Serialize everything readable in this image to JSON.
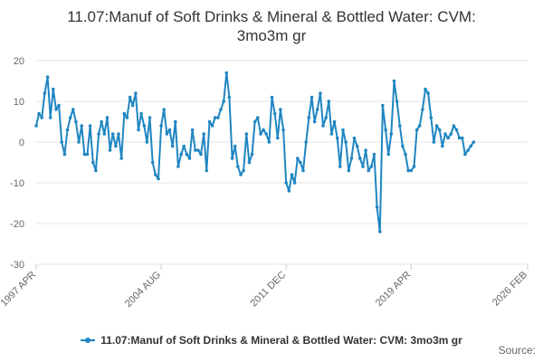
{
  "page": {
    "source_label": "Source:"
  },
  "chart_data": {
    "type": "line",
    "title_lines": [
      "11.07:Manuf of Soft Drinks & Mineral & Bottled Water: CVM:",
      "3mo3m gr"
    ],
    "xlabel": "",
    "ylabel": "",
    "ylim": [
      -30,
      20
    ],
    "yticks": [
      -30,
      -20,
      -10,
      0,
      10,
      20
    ],
    "grid": true,
    "legend_position": "bottom-center",
    "x_range": [
      "1997-04",
      "2026-02"
    ],
    "x_tick_labels": [
      {
        "label": "1997 APR",
        "date": "1997-04"
      },
      {
        "label": "2004 AUG",
        "date": "2004-08"
      },
      {
        "label": "2011 DEC",
        "date": "2011-12"
      },
      {
        "label": "2019 APR",
        "date": "2019-04"
      },
      {
        "label": "2026 FEB",
        "date": "2026-02"
      }
    ],
    "series": [
      {
        "name": "11.07:Manuf of Soft Drinks & Mineral & Bottled Water: CVM: 3mo3m gr",
        "color": "#1f86c1",
        "points": [
          [
            "1997-04",
            4
          ],
          [
            "1997-06",
            7
          ],
          [
            "1997-08",
            6
          ],
          [
            "1997-10",
            12
          ],
          [
            "1997-12",
            16
          ],
          [
            "1998-02",
            6
          ],
          [
            "1998-04",
            13
          ],
          [
            "1998-06",
            8
          ],
          [
            "1998-08",
            9
          ],
          [
            "1998-10",
            0
          ],
          [
            "1998-12",
            -3
          ],
          [
            "1999-02",
            3
          ],
          [
            "1999-04",
            6
          ],
          [
            "1999-06",
            8
          ],
          [
            "1999-08",
            5
          ],
          [
            "1999-10",
            0
          ],
          [
            "1999-12",
            4
          ],
          [
            "2000-02",
            -3
          ],
          [
            "2000-04",
            -3
          ],
          [
            "2000-06",
            4
          ],
          [
            "2000-08",
            -5
          ],
          [
            "2000-10",
            -7
          ],
          [
            "2000-12",
            2
          ],
          [
            "2001-02",
            5
          ],
          [
            "2001-04",
            2
          ],
          [
            "2001-06",
            6
          ],
          [
            "2001-08",
            -2
          ],
          [
            "2001-10",
            2
          ],
          [
            "2001-12",
            -1
          ],
          [
            "2002-02",
            2
          ],
          [
            "2002-04",
            -4
          ],
          [
            "2002-06",
            7
          ],
          [
            "2002-08",
            6
          ],
          [
            "2002-10",
            11
          ],
          [
            "2002-12",
            9
          ],
          [
            "2003-02",
            12
          ],
          [
            "2003-04",
            3
          ],
          [
            "2003-06",
            7
          ],
          [
            "2003-08",
            4
          ],
          [
            "2003-10",
            0
          ],
          [
            "2003-12",
            6
          ],
          [
            "2004-02",
            -5
          ],
          [
            "2004-04",
            -8
          ],
          [
            "2004-06",
            -9
          ],
          [
            "2004-08",
            4
          ],
          [
            "2004-10",
            8
          ],
          [
            "2004-12",
            2
          ],
          [
            "2005-02",
            3
          ],
          [
            "2005-04",
            -1
          ],
          [
            "2005-06",
            5
          ],
          [
            "2005-08",
            -6
          ],
          [
            "2005-10",
            -3
          ],
          [
            "2005-12",
            -1
          ],
          [
            "2006-02",
            -3
          ],
          [
            "2006-04",
            -4
          ],
          [
            "2006-06",
            3
          ],
          [
            "2006-08",
            -2
          ],
          [
            "2006-10",
            -2
          ],
          [
            "2006-12",
            -3
          ],
          [
            "2007-02",
            2
          ],
          [
            "2007-04",
            -7
          ],
          [
            "2007-06",
            5
          ],
          [
            "2007-08",
            4
          ],
          [
            "2007-10",
            6
          ],
          [
            "2007-12",
            6
          ],
          [
            "2008-02",
            8
          ],
          [
            "2008-04",
            10
          ],
          [
            "2008-06",
            17
          ],
          [
            "2008-08",
            11
          ],
          [
            "2008-10",
            -4
          ],
          [
            "2008-12",
            -1
          ],
          [
            "2009-02",
            -6
          ],
          [
            "2009-04",
            -8
          ],
          [
            "2009-06",
            -7
          ],
          [
            "2009-08",
            2
          ],
          [
            "2009-10",
            -5
          ],
          [
            "2009-12",
            -3
          ],
          [
            "2010-02",
            5
          ],
          [
            "2010-04",
            6
          ],
          [
            "2010-06",
            2
          ],
          [
            "2010-08",
            3
          ],
          [
            "2010-10",
            2
          ],
          [
            "2010-12",
            0
          ],
          [
            "2011-02",
            11
          ],
          [
            "2011-04",
            7
          ],
          [
            "2011-06",
            1
          ],
          [
            "2011-08",
            8
          ],
          [
            "2011-10",
            3
          ],
          [
            "2011-12",
            -10
          ],
          [
            "2012-02",
            -12
          ],
          [
            "2012-04",
            -8
          ],
          [
            "2012-06",
            -10
          ],
          [
            "2012-08",
            -4
          ],
          [
            "2012-10",
            -5
          ],
          [
            "2012-12",
            -7
          ],
          [
            "2013-02",
            0
          ],
          [
            "2013-04",
            6
          ],
          [
            "2013-06",
            11
          ],
          [
            "2013-08",
            5
          ],
          [
            "2013-10",
            8
          ],
          [
            "2013-12",
            12
          ],
          [
            "2014-02",
            4
          ],
          [
            "2014-04",
            6
          ],
          [
            "2014-06",
            10
          ],
          [
            "2014-08",
            2
          ],
          [
            "2014-10",
            5
          ],
          [
            "2014-12",
            1
          ],
          [
            "2015-02",
            -6
          ],
          [
            "2015-04",
            3
          ],
          [
            "2015-06",
            0
          ],
          [
            "2015-08",
            -7
          ],
          [
            "2015-10",
            -4
          ],
          [
            "2015-12",
            1
          ],
          [
            "2016-02",
            -1
          ],
          [
            "2016-04",
            -4
          ],
          [
            "2016-06",
            -6
          ],
          [
            "2016-08",
            -2
          ],
          [
            "2016-10",
            -7
          ],
          [
            "2016-12",
            -6
          ],
          [
            "2017-02",
            -3
          ],
          [
            "2017-04",
            -16
          ],
          [
            "2017-06",
            -22
          ],
          [
            "2017-08",
            9
          ],
          [
            "2017-10",
            3
          ],
          [
            "2017-12",
            -3
          ],
          [
            "2018-02",
            2
          ],
          [
            "2018-04",
            15
          ],
          [
            "2018-06",
            10
          ],
          [
            "2018-08",
            4
          ],
          [
            "2018-10",
            -1
          ],
          [
            "2018-12",
            -3
          ],
          [
            "2019-02",
            -7
          ],
          [
            "2019-04",
            -7
          ],
          [
            "2019-06",
            -6
          ],
          [
            "2019-08",
            3
          ],
          [
            "2019-10",
            4
          ],
          [
            "2019-12",
            8
          ],
          [
            "2020-02",
            13
          ],
          [
            "2020-04",
            12
          ],
          [
            "2020-06",
            6
          ],
          [
            "2020-08",
            0
          ],
          [
            "2020-10",
            4
          ],
          [
            "2020-12",
            3
          ],
          [
            "2021-02",
            -1
          ],
          [
            "2021-04",
            2
          ],
          [
            "2021-06",
            1
          ],
          [
            "2021-08",
            2
          ],
          [
            "2021-10",
            4
          ],
          [
            "2021-12",
            3
          ],
          [
            "2022-02",
            1
          ],
          [
            "2022-04",
            1
          ],
          [
            "2022-06",
            -3
          ],
          [
            "2022-08",
            -2
          ],
          [
            "2022-10",
            -1
          ],
          [
            "2022-12",
            0
          ]
        ]
      }
    ]
  }
}
